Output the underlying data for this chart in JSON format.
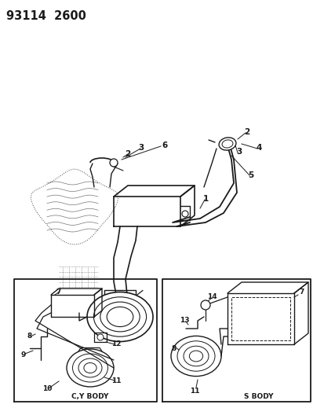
{
  "title": "93114  2600",
  "bg_color": "#ffffff",
  "fig_width": 4.14,
  "fig_height": 5.33,
  "dpi": 100,
  "line_color": "#1a1a1a",
  "label_color": "#111111",
  "title_fontsize": 10.5,
  "label_fontsize_main": 7.5,
  "label_fontsize_sub": 6.5
}
